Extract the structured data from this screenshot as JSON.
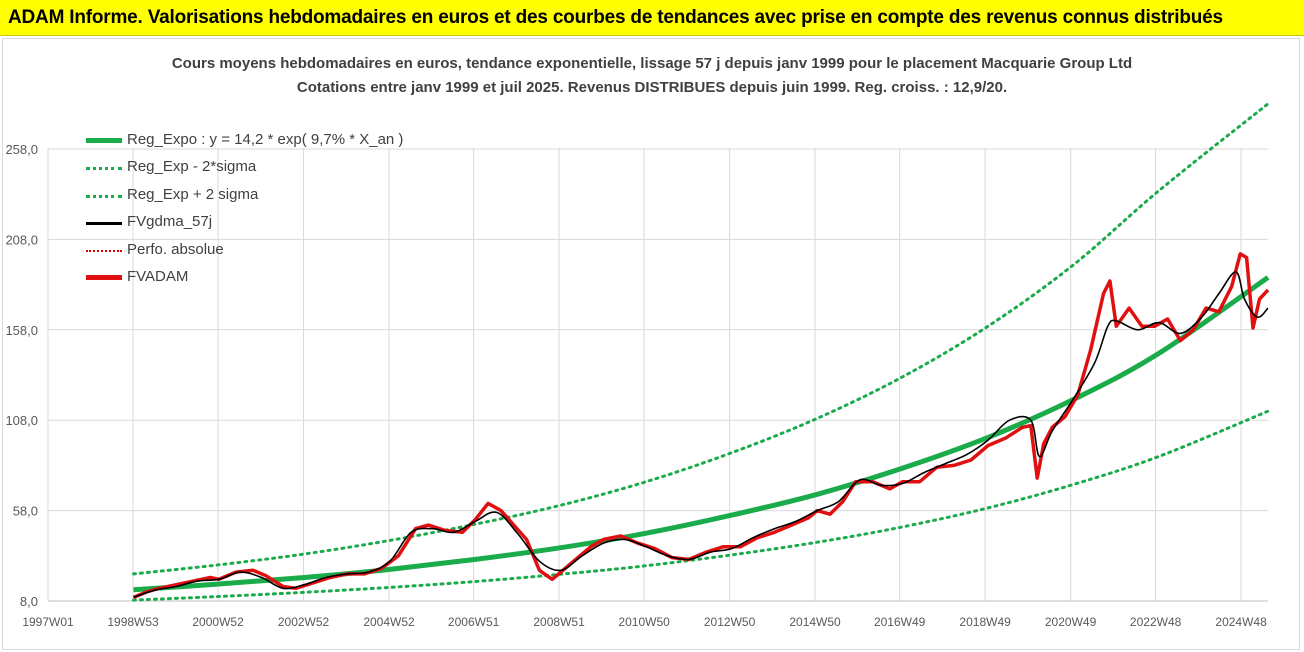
{
  "header": {
    "title": "ADAM Informe. Valorisations hebdomadaires en euros et des courbes de tendances avec prise en compte des revenus connus distribués"
  },
  "chart_data": {
    "type": "line",
    "title": "Cours moyens hebdomadaires en euros, tendance exponentielle, lissage 57 j depuis janv 1999 pour le placement Macquarie Group Ltd",
    "subtitle": "Cotations entre janv 1999 et juil 2025. Revenus DISTRIBUES depuis juin 1999. Reg. croiss. : 12,9/20.",
    "xlabel": "",
    "ylabel": "",
    "ylim": [
      8.0,
      283.0
    ],
    "xlim": [
      1997.0,
      2025.55
    ],
    "yticks": [
      "8,0",
      "58,0",
      "108,0",
      "158,0",
      "208,0",
      "258,0"
    ],
    "ytick_values": [
      8,
      58,
      108,
      158,
      208,
      258
    ],
    "xticks": [
      "1997W01",
      "1998W53",
      "2000W52",
      "2002W52",
      "2004W52",
      "2006W51",
      "2008W51",
      "2010W50",
      "2012W50",
      "2014W50",
      "2016W49",
      "2018W49",
      "2020W49",
      "2022W48",
      "2024W48"
    ],
    "xtick_values": [
      1997.0,
      1998.99,
      2000.98,
      2002.98,
      2004.98,
      2006.96,
      2008.96,
      2010.95,
      2012.95,
      2014.95,
      2016.93,
      2018.93,
      2020.93,
      2022.92,
      2024.92
    ],
    "grid": true,
    "legend_position": "top-left",
    "colors": {
      "reg_expo": "#1aab4b",
      "bands": "#1aab4b",
      "fvgdma": "#000000",
      "perfo": "#e00000",
      "fvadam": "#e01010",
      "grid": "#d9d9d9",
      "header_bg": "#ffff00"
    },
    "legend": [
      {
        "name": "Reg_Expo : y = 14,2 * exp( 9,7% *  X_an )",
        "style": "solid-thick-green"
      },
      {
        "name": "Reg_Exp - 2*sigma",
        "style": "dotted-green"
      },
      {
        "name": "Reg_Exp + 2 sigma",
        "style": "dotted-green"
      },
      {
        "name": "FVgdma_57j",
        "style": "solid-black"
      },
      {
        "name": "Perfo. absolue",
        "style": "dotted-red"
      },
      {
        "name": "FVADAM",
        "style": "solid-thick-red"
      }
    ],
    "series": [
      {
        "name": "Reg_Expo : y = 14,2 * exp( 9,7% *  X_an )",
        "x": [
          1999.0,
          2001.0,
          2003.0,
          2005.0,
          2007.0,
          2009.0,
          2011.0,
          2013.0,
          2015.0,
          2017.0,
          2019.0,
          2021.0,
          2023.0,
          2025.55
        ],
        "y": [
          14.2,
          17.4,
          21.0,
          25.5,
          31.0,
          37.5,
          45.5,
          55.5,
          67.0,
          81.5,
          98.5,
          119.5,
          145.0,
          187.0
        ]
      },
      {
        "name": "Reg_Exp - 2*sigma",
        "x": [
          1999.0,
          2001.0,
          2003.0,
          2005.0,
          2007.0,
          2009.0,
          2011.0,
          2013.0,
          2015.0,
          2017.0,
          2019.0,
          2021.0,
          2023.0,
          2025.55
        ],
        "y": [
          8.5,
          10.5,
          12.8,
          15.5,
          18.8,
          22.8,
          27.5,
          33.5,
          40.5,
          49.0,
          59.5,
          72.5,
          88.0,
          113.0
        ]
      },
      {
        "name": "Reg_Exp + 2 sigma",
        "x": [
          1999.0,
          2001.0,
          2003.0,
          2005.0,
          2007.0,
          2009.0,
          2011.0,
          2013.0,
          2015.0,
          2017.0,
          2019.0,
          2021.0,
          2023.0,
          2025.55
        ],
        "y": [
          23.0,
          28.0,
          34.0,
          41.5,
          50.5,
          61.0,
          74.0,
          90.0,
          109.0,
          132.0,
          160.0,
          194.0,
          235.0,
          283.0
        ]
      },
      {
        "name": "FVgdma_57j",
        "x": [
          1999.0,
          1999.5,
          2000.0,
          2000.5,
          2001.0,
          2001.5,
          2002.0,
          2002.5,
          2003.0,
          2003.5,
          2004.0,
          2004.5,
          2005.0,
          2005.5,
          2006.0,
          2006.5,
          2007.0,
          2007.5,
          2008.0,
          2008.5,
          2009.0,
          2009.5,
          2010.0,
          2010.5,
          2011.0,
          2011.5,
          2012.0,
          2012.5,
          2013.0,
          2013.5,
          2014.0,
          2014.5,
          2015.0,
          2015.5,
          2016.0,
          2016.5,
          2017.0,
          2017.5,
          2018.0,
          2018.5,
          2019.0,
          2019.5,
          2020.0,
          2020.2,
          2020.5,
          2021.0,
          2021.5,
          2021.8,
          2022.0,
          2022.5,
          2023.0,
          2023.5,
          2024.0,
          2024.4,
          2024.8,
          2025.0,
          2025.3,
          2025.55
        ],
        "y": [
          10,
          14,
          16,
          19,
          20,
          24,
          21,
          15,
          17,
          21,
          23,
          24,
          30,
          46,
          48,
          46,
          52,
          57,
          45,
          30,
          25,
          33,
          40,
          42,
          38,
          33,
          31,
          35,
          37,
          43,
          48,
          52,
          58,
          63,
          75,
          72,
          73,
          79,
          84,
          89,
          97,
          108,
          108,
          88,
          102,
          120,
          140,
          160,
          163,
          158,
          162,
          156,
          165,
          178,
          190,
          175,
          165,
          170
        ]
      },
      {
        "name": "FVADAM",
        "x": [
          1999.0,
          1999.3,
          1999.6,
          2000.0,
          2000.4,
          2000.8,
          2001.0,
          2001.4,
          2001.8,
          2002.1,
          2002.5,
          2002.8,
          2003.2,
          2003.6,
          2004.0,
          2004.4,
          2004.8,
          2005.2,
          2005.6,
          2005.9,
          2006.3,
          2006.7,
          2007.0,
          2007.3,
          2007.6,
          2007.9,
          2008.2,
          2008.5,
          2008.8,
          2009.0,
          2009.3,
          2009.7,
          2010.0,
          2010.4,
          2010.8,
          2011.2,
          2011.6,
          2012.0,
          2012.4,
          2012.8,
          2013.2,
          2013.6,
          2014.0,
          2014.4,
          2014.8,
          2015.0,
          2015.3,
          2015.6,
          2015.9,
          2016.3,
          2016.7,
          2017.0,
          2017.4,
          2017.8,
          2018.2,
          2018.6,
          2019.0,
          2019.4,
          2019.8,
          2020.0,
          2020.15,
          2020.3,
          2020.5,
          2020.8,
          2021.1,
          2021.4,
          2021.7,
          2021.85,
          2022.0,
          2022.3,
          2022.6,
          2022.9,
          2023.2,
          2023.5,
          2023.8,
          2024.1,
          2024.4,
          2024.7,
          2024.9,
          2025.05,
          2025.2,
          2025.35,
          2025.55
        ],
        "y": [
          10,
          13,
          15,
          17,
          19,
          21,
          20,
          24,
          25,
          22,
          16,
          15,
          18,
          21,
          23,
          23,
          26,
          33,
          48,
          50,
          47,
          46,
          53,
          62,
          58,
          50,
          42,
          25,
          20,
          24,
          30,
          38,
          42,
          44,
          40,
          37,
          32,
          31,
          35,
          38,
          38,
          43,
          46,
          50,
          54,
          58,
          56,
          63,
          74,
          74,
          70,
          74,
          74,
          82,
          83,
          86,
          94,
          98,
          104,
          105,
          76,
          95,
          104,
          110,
          122,
          147,
          178,
          185,
          160,
          170,
          160,
          160,
          164,
          152,
          158,
          170,
          168,
          182,
          200,
          198,
          159,
          175,
          180
        ]
      }
    ]
  }
}
